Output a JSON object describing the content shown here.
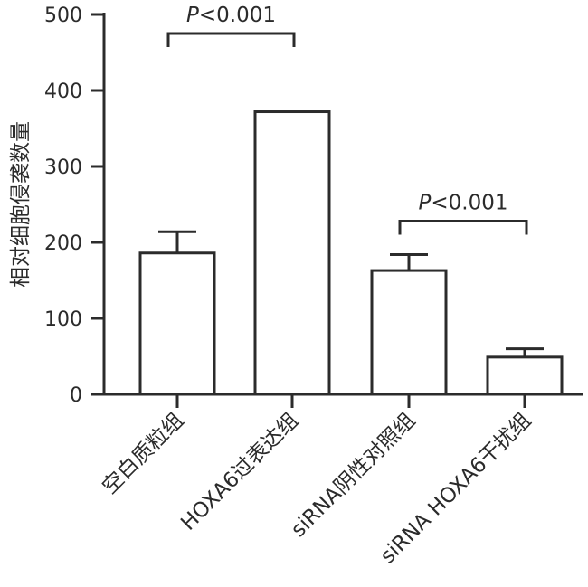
{
  "chart_data": {
    "type": "bar",
    "categories": [
      "空白质粒组",
      "HOXA6过表达组",
      "siRNA阴性对照组",
      "siRNA HOXA6干扰组"
    ],
    "values": [
      186,
      372,
      163,
      49
    ],
    "error_upper": [
      214,
      372,
      184,
      60
    ],
    "ylabel": "相对细胞侵袭数量",
    "xlabel": "",
    "ylim": [
      0,
      500
    ],
    "yticks": [
      0,
      100,
      200,
      300,
      400,
      500
    ],
    "grid": false,
    "bar_color": "#ffffff",
    "edge_color": "#2b2b2b",
    "annotations": [
      {
        "from": 0,
        "to": 1,
        "italic": "P",
        "text": "<0.001",
        "level": 475
      },
      {
        "from": 2,
        "to": 3,
        "italic": "P",
        "text": "<0.001",
        "level": 228
      }
    ]
  }
}
